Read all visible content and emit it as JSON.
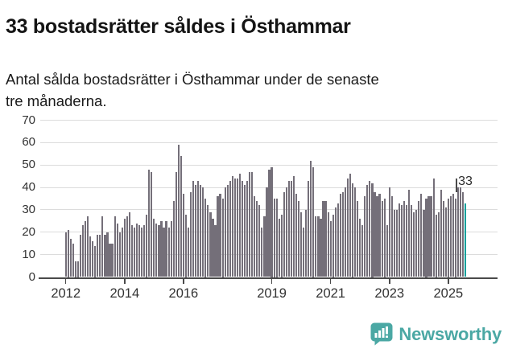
{
  "title": "33 bostadsrätter såldes i Östhammar",
  "subtitle": "Antal sålda bostadsrätter i Östhammar under de senaste tre månaderna.",
  "annotation": {
    "label": "33"
  },
  "footer": {
    "brand": "Newsworthy"
  },
  "colors": {
    "bar": "#746F79",
    "highlight": "#12A09B",
    "grid": "#DCDCDC",
    "axis": "#4A4A4A",
    "text": "#333333",
    "brand_teal": "#4BA8A4"
  },
  "chart_data": {
    "type": "bar",
    "title": "33 bostadsrätter såldes i Östhammar",
    "xlabel": "",
    "ylabel": "",
    "frequency": "monthly",
    "x_start": "2012-01",
    "x_end": "2025-08",
    "ylim": [
      0,
      70
    ],
    "y_ticks": [
      0,
      10,
      20,
      30,
      40,
      50,
      60,
      70
    ],
    "x_tick_years": [
      2012,
      2014,
      2016,
      2019,
      2021,
      2023,
      2025
    ],
    "x_tick_labels": [
      "2012",
      "2014",
      "2016",
      "2019",
      "2021",
      "2023",
      "2025"
    ],
    "grid": "horizontal",
    "legend": "none",
    "highlight_last": true,
    "last_value": 33,
    "values": [
      20,
      21,
      17,
      15,
      7,
      7,
      19,
      23,
      25,
      27,
      18,
      16,
      14,
      19,
      19,
      27,
      19,
      20,
      15,
      15,
      27,
      24,
      20,
      22,
      26,
      27,
      29,
      23,
      22,
      24,
      23,
      22,
      23,
      28,
      48,
      47,
      26,
      24,
      23,
      25,
      22,
      25,
      22,
      25,
      34,
      47,
      59,
      54,
      37,
      28,
      22,
      38,
      43,
      41,
      43,
      41,
      40,
      35,
      32,
      29,
      26,
      23,
      36,
      37,
      35,
      40,
      41,
      43,
      45,
      44,
      44,
      46,
      43,
      41,
      43,
      47,
      47,
      36,
      34,
      32,
      22,
      27,
      40,
      48,
      49,
      35,
      35,
      26,
      28,
      38,
      40,
      43,
      43,
      45,
      37,
      34,
      29,
      22,
      30,
      43,
      52,
      49,
      27,
      27,
      26,
      34,
      34,
      29,
      25,
      28,
      31,
      33,
      37,
      38,
      40,
      44,
      46,
      42,
      40,
      34,
      26,
      23,
      36,
      41,
      43,
      42,
      38,
      36,
      37,
      34,
      35,
      23,
      40,
      36,
      30,
      30,
      33,
      32,
      34,
      32,
      39,
      32,
      29,
      30,
      34,
      37,
      30,
      35,
      36,
      36,
      44,
      28,
      29,
      39,
      34,
      31,
      35,
      36,
      37,
      35,
      40,
      40,
      38,
      33
    ]
  }
}
